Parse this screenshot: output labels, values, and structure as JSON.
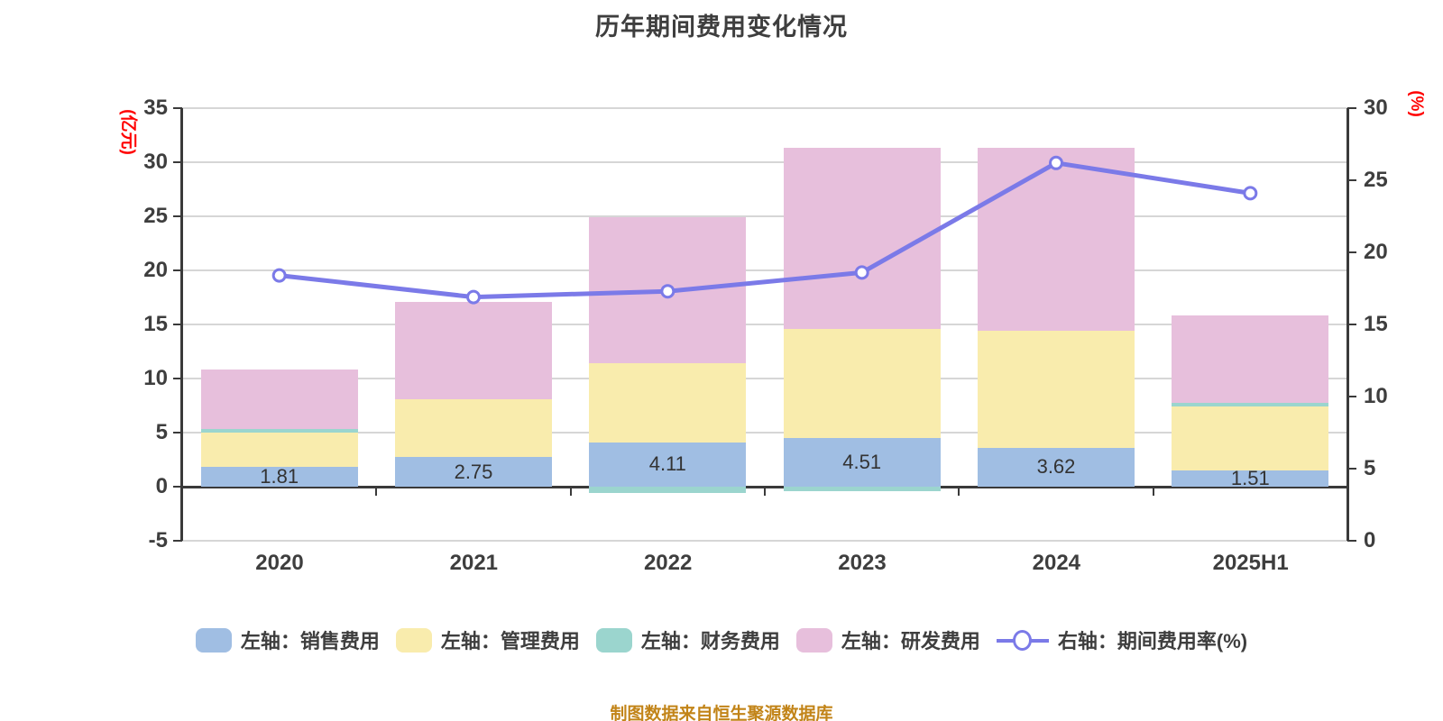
{
  "title": "历年期间费用变化情况",
  "caption": "制图数据来自恒生聚源数据库",
  "left_axis": {
    "unit": "(亿元)",
    "tick_labels": [
      "35",
      "30",
      "25",
      "20",
      "15",
      "10",
      "5",
      "0",
      "-5"
    ],
    "range": [
      -5,
      35
    ]
  },
  "right_axis": {
    "unit": "(%)",
    "tick_labels": [
      "30",
      "25",
      "20",
      "15",
      "10",
      "5",
      "0"
    ],
    "range": [
      0,
      30
    ]
  },
  "colors": {
    "sales": "#A0BEE3",
    "management": "#F9ECAD",
    "financial": "#9BD5CE",
    "rnd": "#E7BFDC",
    "line": "#7B7AE8",
    "marker_fill": "#FFFFFF",
    "grid": "#D6D6D6",
    "axis": "#3A3A3A",
    "text": "#3E3E3E",
    "axis_unit": "#FF0000",
    "caption": "#C28418"
  },
  "chart_data": {
    "type": "bar",
    "subtype": "stacked-bars-with-line",
    "title": "历年期间费用变化情况",
    "categories": [
      "2020",
      "2021",
      "2022",
      "2023",
      "2024",
      "2025H1"
    ],
    "series": [
      {
        "name": "左轴：销售费用",
        "type": "bar",
        "axis": "left",
        "color_key": "sales",
        "values": [
          1.81,
          2.75,
          4.11,
          4.51,
          3.62,
          1.51
        ]
      },
      {
        "name": "左轴：管理费用",
        "type": "bar",
        "axis": "left",
        "color_key": "management",
        "values": [
          3.2,
          5.3,
          7.3,
          10.1,
          10.8,
          5.9
        ]
      },
      {
        "name": "左轴：财务费用",
        "type": "bar",
        "axis": "left",
        "color_key": "financial",
        "values": [
          0.35,
          0,
          -0.55,
          -0.45,
          0,
          0.3
        ]
      },
      {
        "name": "左轴：研发费用",
        "type": "bar",
        "axis": "left",
        "color_key": "rnd",
        "values": [
          5.5,
          9.0,
          13.5,
          16.7,
          16.9,
          8.1
        ]
      },
      {
        "name": "右轴：期间费用率(%)",
        "type": "line",
        "axis": "right",
        "color_key": "line",
        "values": [
          18.4,
          16.9,
          17.3,
          18.6,
          26.2,
          24.1
        ]
      }
    ],
    "bar_labels": [
      "1.81",
      "2.75",
      "4.11",
      "4.51",
      "3.62",
      "1.51"
    ],
    "bar_totals": [
      10.9,
      17.1,
      24.9,
      31.3,
      31.3,
      15.9
    ],
    "left_ylabel": "(亿元)",
    "right_ylabel": "(%)",
    "left_ylim": [
      -5,
      35
    ],
    "right_ylim": [
      0,
      30
    ],
    "grid": "horizontal",
    "legend_position": "bottom"
  },
  "legend": {
    "items": [
      {
        "label": "左轴：销售费用",
        "swatch": "bar",
        "color_key": "sales"
      },
      {
        "label": "左轴：管理费用",
        "swatch": "bar",
        "color_key": "management"
      },
      {
        "label": "左轴：财务费用",
        "swatch": "bar",
        "color_key": "financial"
      },
      {
        "label": "左轴：研发费用",
        "swatch": "bar",
        "color_key": "rnd"
      },
      {
        "label": "右轴：期间费用率(%)",
        "swatch": "line",
        "color_key": "line"
      }
    ]
  }
}
